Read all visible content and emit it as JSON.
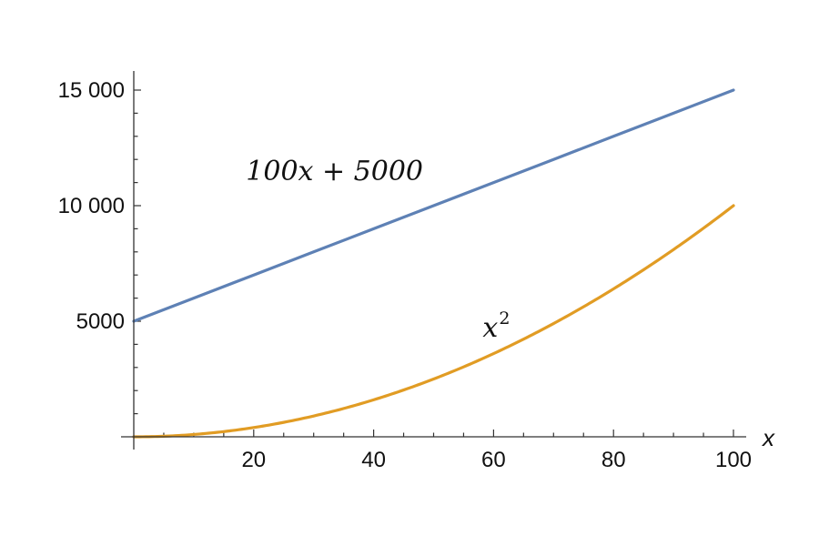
{
  "chart_data": {
    "type": "line",
    "xlabel": "x",
    "ylabel": "",
    "xlim": [
      0,
      100
    ],
    "ylim": [
      0,
      15000
    ],
    "xticks": [
      20,
      40,
      60,
      80,
      100
    ],
    "xtick_labels": [
      "20",
      "40",
      "60",
      "80",
      "100"
    ],
    "yticks": [
      5000,
      10000,
      15000
    ],
    "ytick_labels": [
      "5000",
      "10 000",
      "15 000"
    ],
    "grid": false,
    "series": [
      {
        "name": "100x + 5000",
        "label_text": "100x + 5000",
        "color": "#5e81b5",
        "x": [
          0,
          10,
          20,
          30,
          40,
          50,
          60,
          70,
          80,
          90,
          100
        ],
        "values": [
          5000,
          6000,
          7000,
          8000,
          9000,
          10000,
          11000,
          12000,
          13000,
          14000,
          15000
        ]
      },
      {
        "name": "x^2",
        "label_base": "x",
        "label_sup": "2",
        "color": "#e19c24",
        "x": [
          0,
          10,
          20,
          30,
          40,
          50,
          60,
          70,
          80,
          90,
          100
        ],
        "values": [
          0,
          100,
          400,
          900,
          1600,
          2500,
          3600,
          4900,
          6400,
          8100,
          10000
        ]
      }
    ],
    "annotations": [
      {
        "series": 0,
        "at": [
          35,
          11500
        ]
      },
      {
        "series": 1,
        "at": [
          60,
          4800
        ]
      }
    ]
  }
}
